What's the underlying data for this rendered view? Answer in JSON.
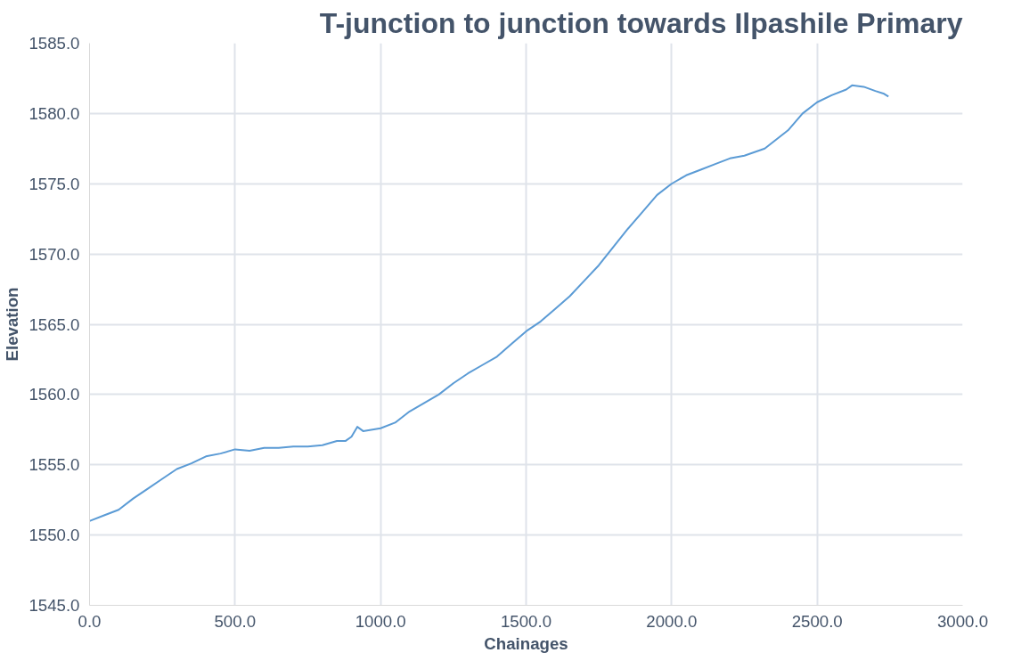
{
  "chart_data": {
    "type": "line",
    "title": "T-junction to junction towards Ilpashile Primary",
    "xlabel": "Chainages",
    "ylabel": "Elevation",
    "series": [
      {
        "color": "#5b9bd5",
        "x": [
          0,
          50,
          100,
          150,
          200,
          250,
          300,
          350,
          400,
          450,
          500,
          550,
          600,
          650,
          700,
          750,
          800,
          850,
          880,
          900,
          920,
          940,
          1000,
          1050,
          1100,
          1150,
          1200,
          1250,
          1300,
          1350,
          1400,
          1450,
          1500,
          1550,
          1600,
          1650,
          1700,
          1750,
          1800,
          1850,
          1900,
          1950,
          2000,
          2050,
          2100,
          2150,
          2200,
          2250,
          2320,
          2400,
          2450,
          2500,
          2550,
          2600,
          2620,
          2660,
          2700,
          2730,
          2745
        ],
        "values": [
          1551.0,
          1551.4,
          1551.8,
          1552.6,
          1553.3,
          1554.0,
          1554.7,
          1555.1,
          1555.6,
          1555.8,
          1556.1,
          1556.0,
          1556.2,
          1556.2,
          1556.3,
          1556.3,
          1556.4,
          1556.7,
          1556.7,
          1557.0,
          1557.7,
          1557.4,
          1557.6,
          1558.0,
          1558.8,
          1559.4,
          1560.0,
          1560.8,
          1561.5,
          1562.1,
          1562.7,
          1563.6,
          1564.5,
          1565.2,
          1566.1,
          1567.0,
          1568.1,
          1569.2,
          1570.5,
          1571.8,
          1573.0,
          1574.2,
          1575.0,
          1575.6,
          1576.0,
          1576.4,
          1576.8,
          1577.0,
          1577.5,
          1578.8,
          1580.0,
          1580.8,
          1581.3,
          1581.7,
          1582.0,
          1581.9,
          1581.6,
          1581.4,
          1581.2
        ]
      }
    ],
    "xlim": [
      0,
      3000
    ],
    "xticks": [
      {
        "value": 0,
        "label": "0.0"
      },
      {
        "value": 500,
        "label": "500.0"
      },
      {
        "value": 1000,
        "label": "1000.0"
      },
      {
        "value": 1500,
        "label": "1500.0"
      },
      {
        "value": 2000,
        "label": "2000.0"
      },
      {
        "value": 2500,
        "label": "2500.0"
      },
      {
        "value": 3000,
        "label": "3000.0"
      }
    ],
    "ylim": [
      1545,
      1585
    ],
    "yticks": [
      {
        "value": 1545,
        "label": "1545.0"
      },
      {
        "value": 1550,
        "label": "1550.0"
      },
      {
        "value": 1555,
        "label": "1555.0"
      },
      {
        "value": 1560,
        "label": "1560.0"
      },
      {
        "value": 1565,
        "label": "1565.0"
      },
      {
        "value": 1570,
        "label": "1570.0"
      },
      {
        "value": 1575,
        "label": "1575.0"
      },
      {
        "value": 1580,
        "label": "1580.0"
      },
      {
        "value": 1585,
        "label": "1585.0"
      }
    ],
    "grid": true,
    "marker": "none",
    "line_style": "solid"
  }
}
